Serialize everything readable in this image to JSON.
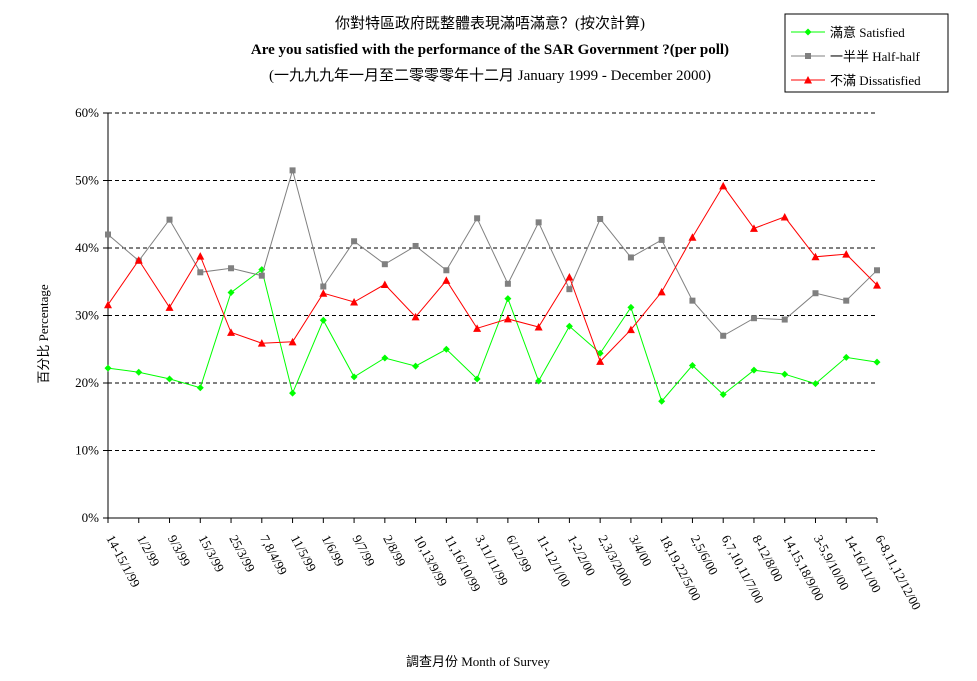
{
  "chart_data": {
    "type": "line",
    "title_lines": [
      "你對特區政府既整體表現滿唔滿意？(按次計算)",
      "Are you satisfied with the performance of the SAR Government ?(per poll)",
      "(一九九九年一月至二零零零年十二月 January 1999 - December 2000)"
    ],
    "xlabel": "調查月份 Month of Survey",
    "ylabel": "百分比 Percentage",
    "ylim": [
      0,
      60
    ],
    "yticks": [
      "0%",
      "10%",
      "20%",
      "30%",
      "40%",
      "50%",
      "60%"
    ],
    "grid": "horizontal-dashed",
    "legend_position": "top-right",
    "categories": [
      "14-15/1/99",
      "1/2/99",
      "9/3/99",
      "15/3/99",
      "25/3/99",
      "7,8/4/99",
      "11/5/99",
      "1/6/99",
      "9/7/99",
      "2/8/99",
      "10,13/9/99",
      "11,16/10/99",
      "3,11/11/99",
      "6/12/99",
      "11-12/1/00",
      "1-2/2/00",
      "2,3/3/2000",
      "3/4/00",
      "18,19,22/5/00",
      "2,5/6/00",
      "6,7,10,11/7/00",
      "8-12/8/00",
      "14,15,18/9/00",
      "3-5,9/10/00",
      "14-16/11/00",
      "6-8,11,12/12/00"
    ],
    "series": [
      {
        "name": "滿意 Satisfied",
        "color": "#00ff00",
        "marker": "diamond",
        "values": [
          22.2,
          21.6,
          20.6,
          19.3,
          33.4,
          36.8,
          18.5,
          29.3,
          20.9,
          23.7,
          22.5,
          25.0,
          20.6,
          32.5,
          20.3,
          28.4,
          24.4,
          31.2,
          17.3,
          22.6,
          18.3,
          21.9,
          21.3,
          19.9,
          23.8,
          23.1
        ]
      },
      {
        "name": "一半半 Half-half",
        "color": "#808080",
        "marker": "square",
        "values": [
          42.0,
          38.1,
          44.2,
          36.4,
          37.0,
          35.9,
          51.5,
          34.3,
          41.0,
          37.6,
          40.3,
          36.7,
          44.4,
          34.7,
          43.8,
          33.9,
          44.3,
          38.6,
          41.2,
          32.2,
          27.0,
          29.6,
          29.4,
          33.3,
          32.2,
          36.7
        ]
      },
      {
        "name": "不滿 Dissatisfied",
        "color": "#ff0000",
        "marker": "triangle",
        "values": [
          31.6,
          38.2,
          31.2,
          38.8,
          27.5,
          25.9,
          26.1,
          33.3,
          32.0,
          34.6,
          29.8,
          35.2,
          28.1,
          29.5,
          28.3,
          35.7,
          23.2,
          27.9,
          33.5,
          41.6,
          49.2,
          42.9,
          44.6,
          38.7,
          39.1,
          34.5
        ]
      }
    ]
  }
}
